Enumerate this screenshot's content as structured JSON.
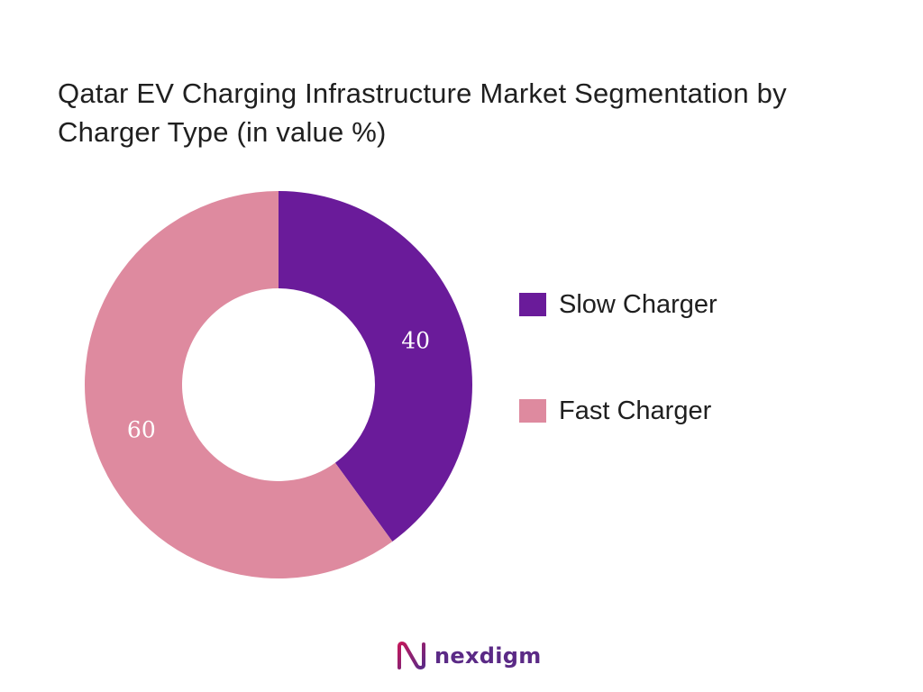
{
  "chart_data": {
    "type": "pie",
    "variant": "donut",
    "title": "Qatar EV Charging Infrastructure Market Segmentation by Charger Type (in value %)",
    "categories": [
      "Slow Charger",
      "Fast Charger"
    ],
    "values": [
      40,
      60
    ],
    "colors": [
      "#6a1b9a",
      "#de8a9f"
    ],
    "data_labels": [
      "40",
      "60"
    ],
    "legend": "right"
  },
  "brand": {
    "name": "nexdigm",
    "accent": "#5b2a86"
  }
}
